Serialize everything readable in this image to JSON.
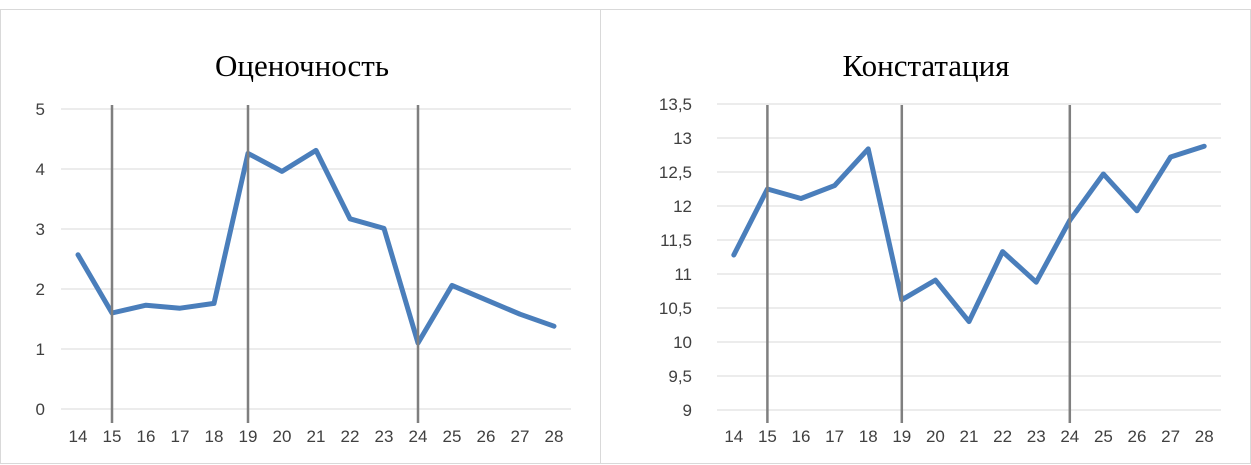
{
  "chart_data": [
    {
      "type": "line",
      "title": "Оценочность",
      "xlabel": "",
      "ylabel": "",
      "categories": [
        "14",
        "15",
        "16",
        "17",
        "18",
        "19",
        "20",
        "21",
        "22",
        "23",
        "24",
        "25",
        "26",
        "27",
        "28"
      ],
      "series": [
        {
          "values": [
            2.57,
            1.6,
            1.73,
            1.68,
            1.76,
            4.26,
            3.96,
            4.31,
            3.17,
            3.01,
            1.1,
            2.06,
            1.82,
            1.58,
            1.38
          ]
        }
      ],
      "ylim": [
        0,
        5
      ],
      "yticks": [
        "0",
        "1",
        "2",
        "3",
        "4",
        "5"
      ],
      "vertical_markers": [
        "15",
        "19",
        "24"
      ],
      "grid": true,
      "line_color": "#4a7ebb",
      "marker_color": "#7f7f7f"
    },
    {
      "type": "line",
      "title": "Констатация",
      "xlabel": "",
      "ylabel": "",
      "categories": [
        "14",
        "15",
        "16",
        "17",
        "18",
        "19",
        "20",
        "21",
        "22",
        "23",
        "24",
        "25",
        "26",
        "27",
        "28"
      ],
      "series": [
        {
          "values": [
            11.28,
            12.25,
            12.11,
            12.3,
            12.84,
            10.62,
            10.91,
            10.3,
            11.33,
            10.88,
            11.79,
            12.47,
            11.93,
            12.72,
            12.88
          ]
        }
      ],
      "ylim": [
        9,
        13.5
      ],
      "yticks": [
        "9",
        "9,5",
        "10",
        "10,5",
        "11",
        "11,5",
        "12",
        "12,5",
        "13",
        "13,5"
      ],
      "vertical_markers": [
        "15",
        "19",
        "24"
      ],
      "grid": true,
      "line_color": "#4a7ebb",
      "marker_color": "#7f7f7f"
    }
  ]
}
